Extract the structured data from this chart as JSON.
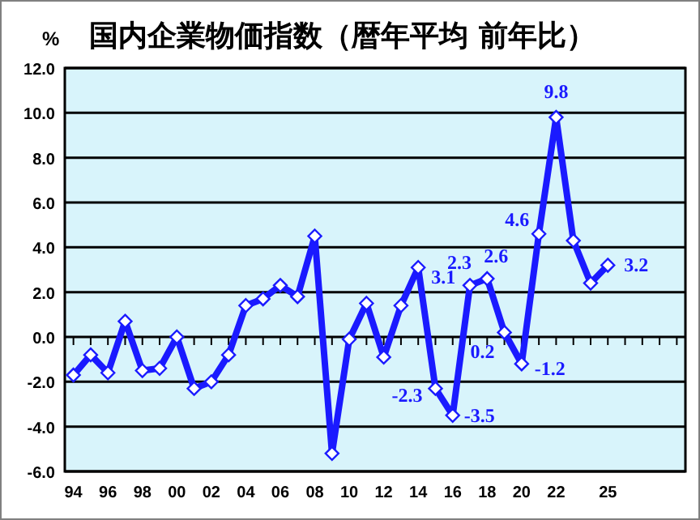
{
  "chart_data": {
    "type": "line",
    "title": "国内企業物価指数（暦年平均 前年比）",
    "ylabel": "%",
    "x": [
      1994,
      1995,
      1996,
      1997,
      1998,
      1999,
      2000,
      2001,
      2002,
      2003,
      2004,
      2005,
      2006,
      2007,
      2008,
      2009,
      2010,
      2011,
      2012,
      2013,
      2014,
      2015,
      2016,
      2017,
      2018,
      2019,
      2020,
      2021,
      2022,
      2023,
      2024,
      2025
    ],
    "series": [
      {
        "color": "#1a1aff",
        "values": [
          -1.7,
          -0.8,
          -1.6,
          0.7,
          -1.5,
          -1.4,
          0.0,
          -2.3,
          -2.0,
          -0.8,
          1.4,
          1.7,
          2.3,
          1.8,
          4.5,
          -5.2,
          -0.1,
          1.5,
          -0.9,
          1.4,
          3.1,
          -2.3,
          -3.5,
          2.3,
          2.6,
          0.2,
          -1.2,
          4.6,
          9.8,
          4.3,
          2.4,
          3.2
        ],
        "value_labels": [
          null,
          null,
          null,
          null,
          null,
          null,
          null,
          null,
          null,
          null,
          null,
          null,
          null,
          null,
          null,
          null,
          null,
          null,
          null,
          null,
          "3.1",
          "-2.3",
          "-3.5",
          "2.3",
          "2.6",
          "0.2",
          "-1.2",
          "4.6",
          "9.8",
          null,
          null,
          "3.2"
        ]
      }
    ],
    "xlim": [
      1993.5,
      2029.5
    ],
    "xticks": [
      {
        "value": 1994,
        "label": "94"
      },
      {
        "value": 1996,
        "label": "96"
      },
      {
        "value": 1998,
        "label": "98"
      },
      {
        "value": 2000,
        "label": "00"
      },
      {
        "value": 2002,
        "label": "02"
      },
      {
        "value": 2004,
        "label": "04"
      },
      {
        "value": 2006,
        "label": "06"
      },
      {
        "value": 2008,
        "label": "08"
      },
      {
        "value": 2010,
        "label": "10"
      },
      {
        "value": 2012,
        "label": "12"
      },
      {
        "value": 2014,
        "label": "14"
      },
      {
        "value": 2016,
        "label": "16"
      },
      {
        "value": 2018,
        "label": "18"
      },
      {
        "value": 2020,
        "label": "20"
      },
      {
        "value": 2022,
        "label": "22"
      },
      {
        "value": 2025,
        "label": "25"
      }
    ],
    "ylim": [
      -6,
      12
    ],
    "yticks": [
      {
        "value": -6,
        "label": "-6.0"
      },
      {
        "value": -4,
        "label": "-4.0"
      },
      {
        "value": -2,
        "label": "-2.0"
      },
      {
        "value": 0,
        "label": "0.0"
      },
      {
        "value": 2,
        "label": "2.0"
      },
      {
        "value": 4,
        "label": "4.0"
      },
      {
        "value": 6,
        "label": "6.0"
      },
      {
        "value": 8,
        "label": "8.0"
      },
      {
        "value": 10,
        "label": "10.0"
      },
      {
        "value": 12,
        "label": "12.0"
      }
    ],
    "grid": "y",
    "marker": "diamond",
    "line_style": "solid"
  }
}
